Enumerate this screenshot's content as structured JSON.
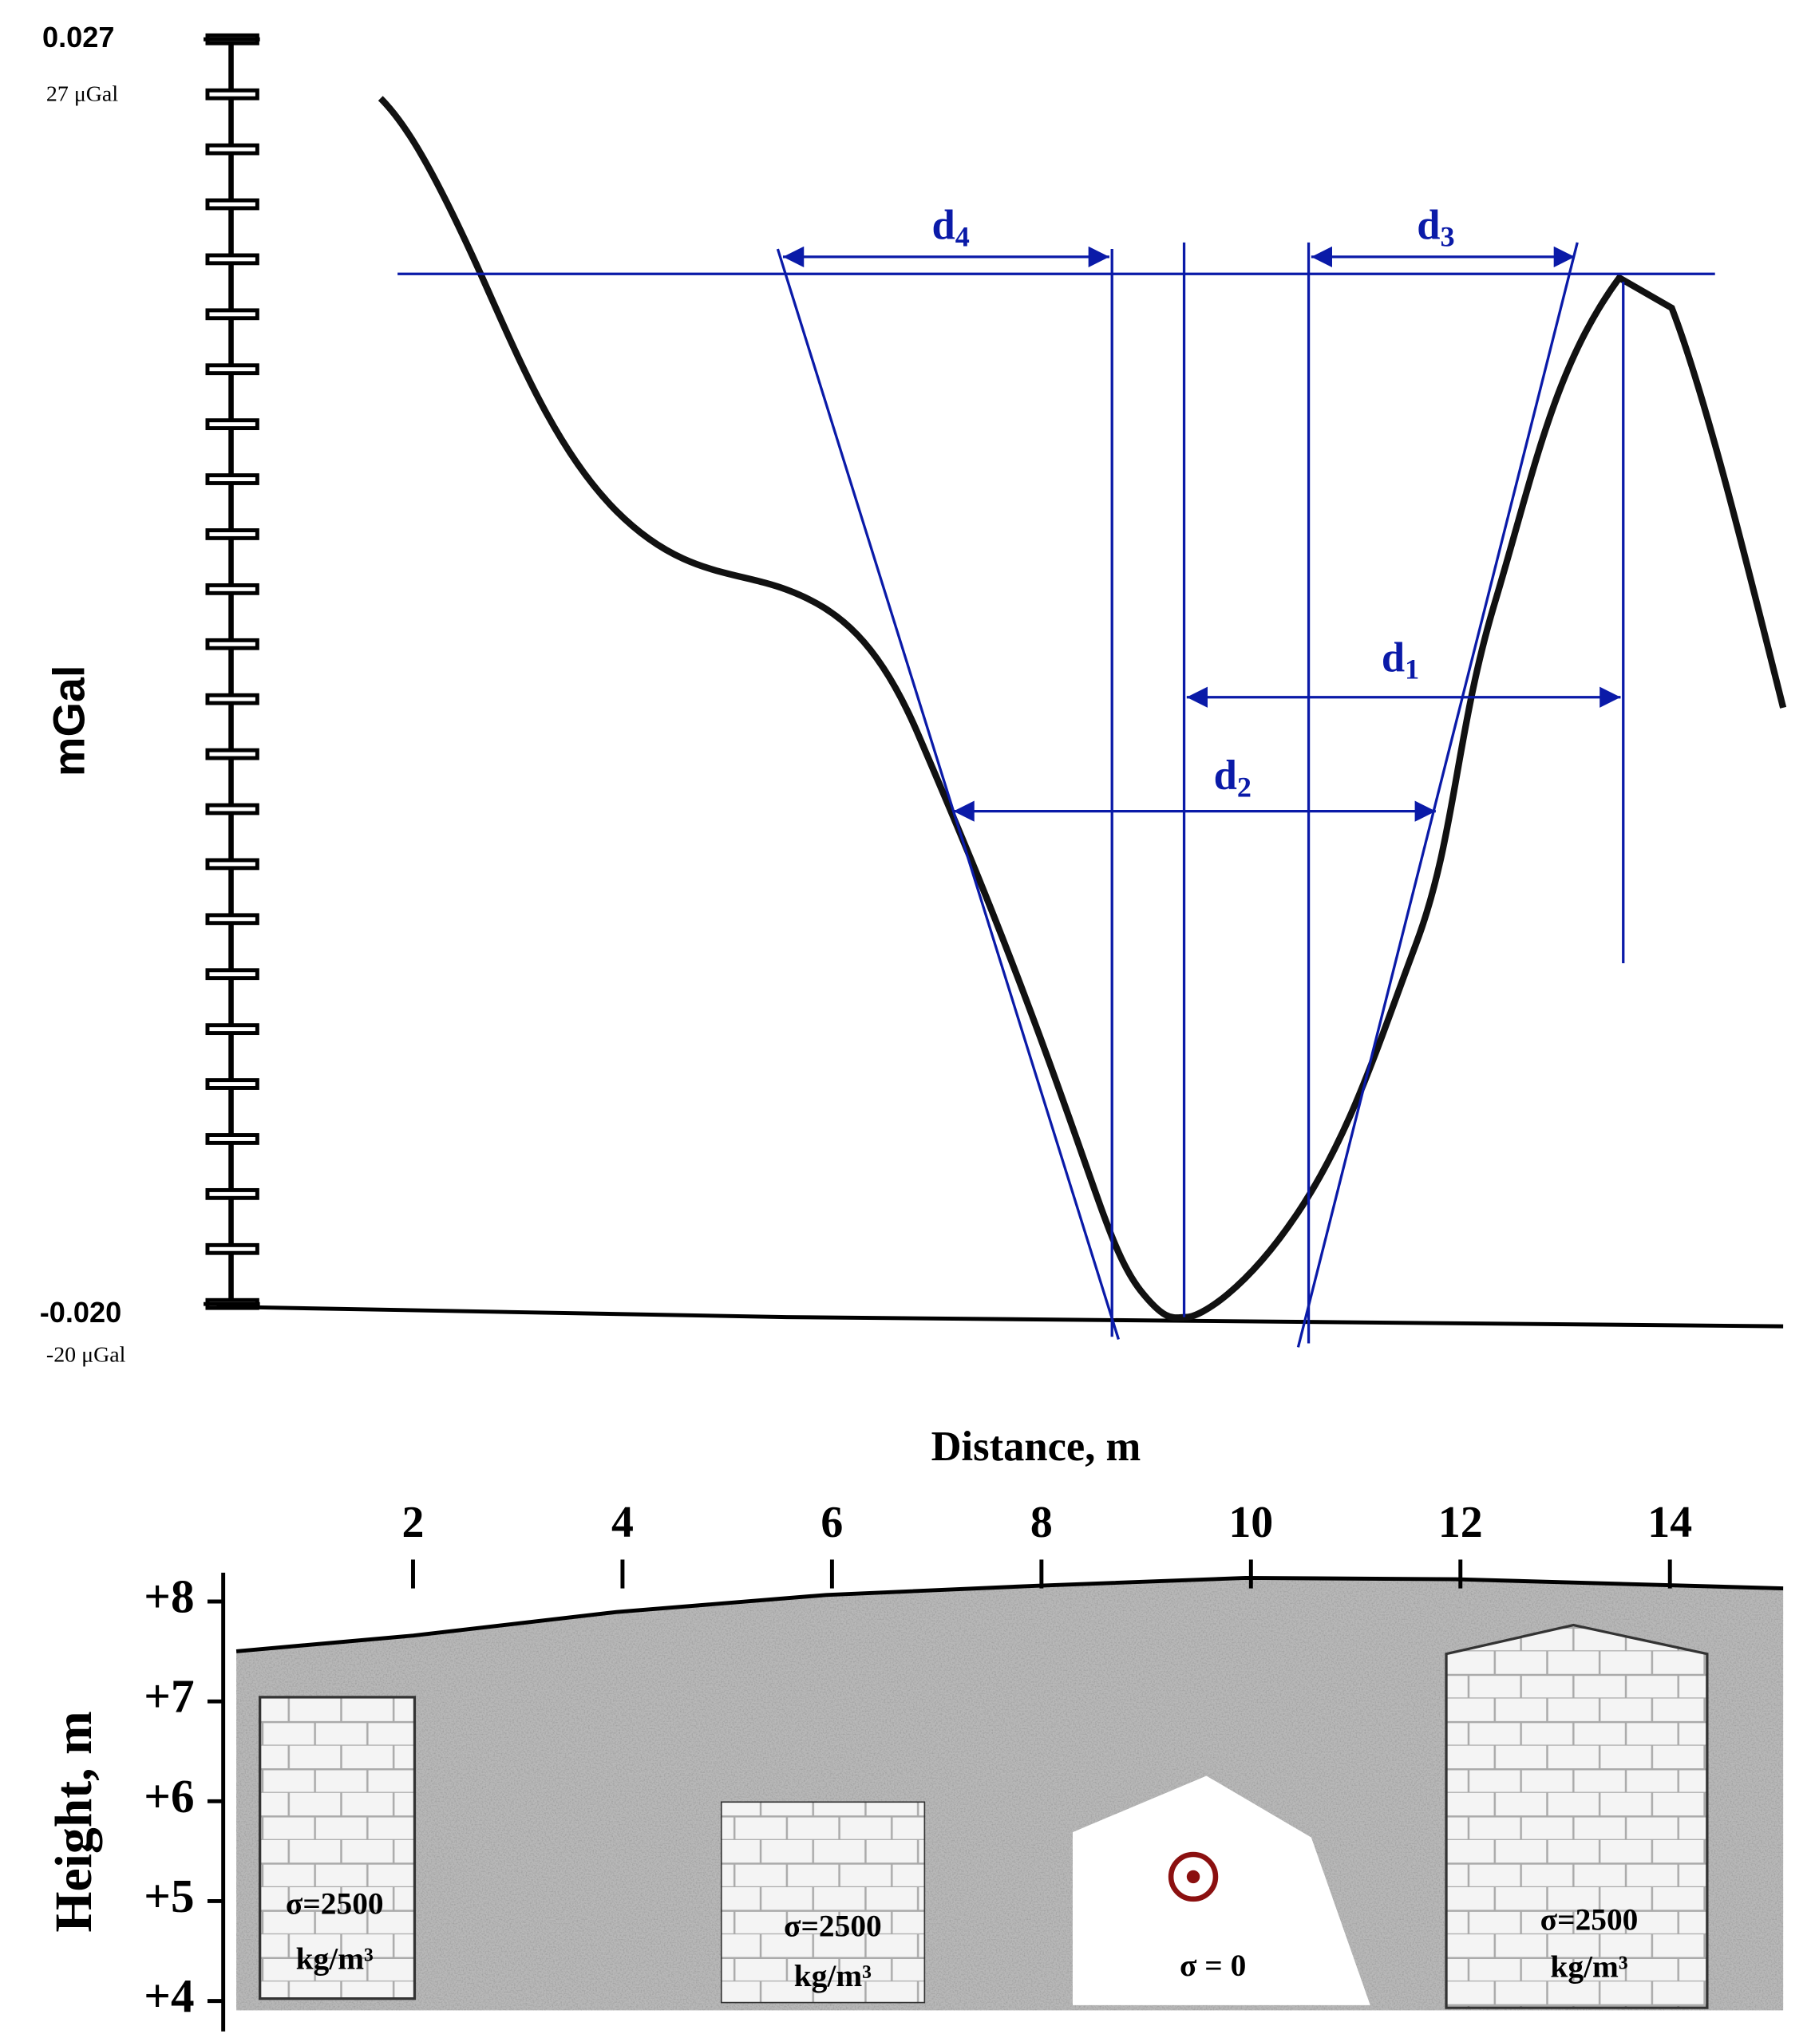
{
  "gravity_axis": {
    "unit_label": "mGal",
    "top": {
      "value": 0.027,
      "label": "0.027",
      "micro_label": "27 μGal"
    },
    "bottom": {
      "value": -0.02,
      "label": "-0.020",
      "micro_label": "-20 μGal"
    }
  },
  "distances": [
    {
      "symbol": "d",
      "subscript": "4"
    },
    {
      "symbol": "d",
      "subscript": "3"
    },
    {
      "symbol": "d",
      "subscript": "1"
    },
    {
      "symbol": "d",
      "subscript": "2"
    }
  ],
  "distance_axis": {
    "label": "Distance, m",
    "ticks": [
      2,
      4,
      6,
      8,
      10,
      12,
      14
    ]
  },
  "height_axis": {
    "label": "Height, m",
    "ticks": [
      {
        "value": 8,
        "label": "+8"
      },
      {
        "value": 7,
        "label": "+7"
      },
      {
        "value": 6,
        "label": "+6"
      },
      {
        "value": 5,
        "label": "+5"
      },
      {
        "value": 4,
        "label": "+4"
      }
    ]
  },
  "bodies": [
    {
      "density": "σ=2500",
      "unit": "kg/m³"
    },
    {
      "density": "σ=2500",
      "unit": "kg/m³"
    },
    {
      "density": "σ = 0"
    },
    {
      "density": "σ=2500",
      "unit": "kg/m³"
    }
  ]
}
